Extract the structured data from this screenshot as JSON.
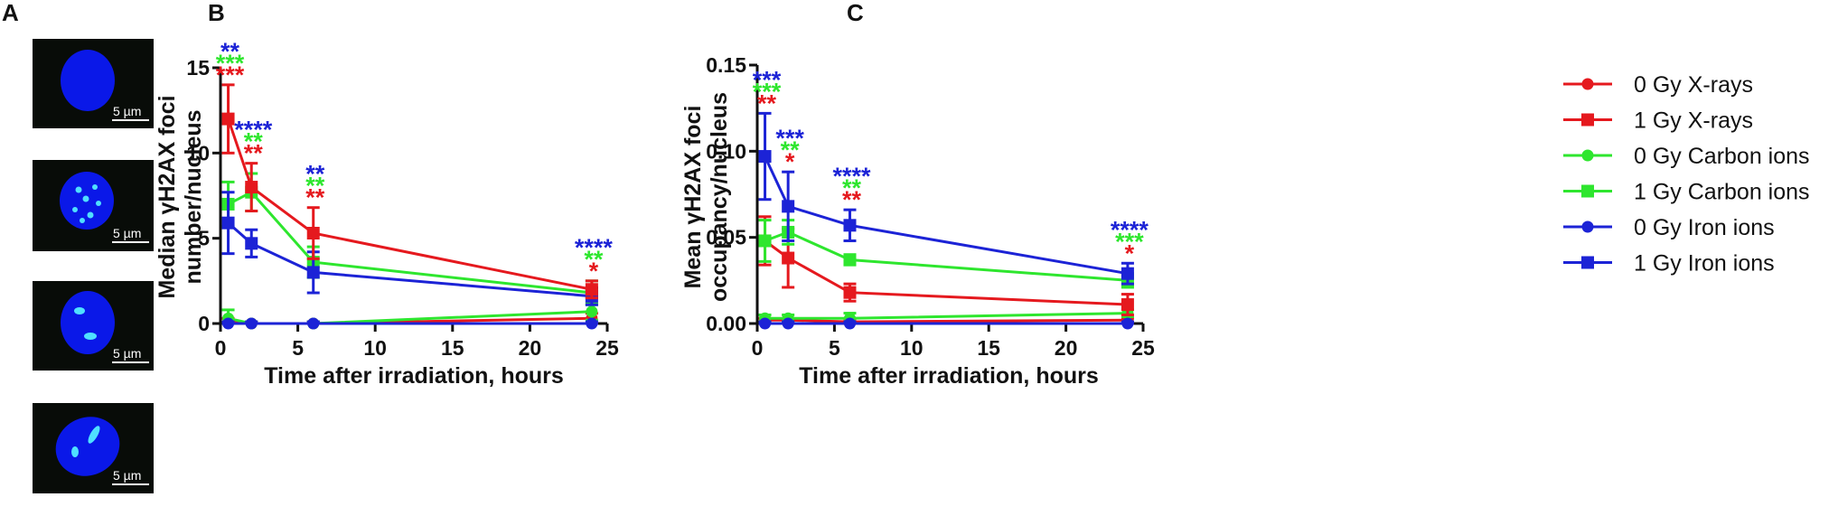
{
  "panel_labels": {
    "a": "A",
    "b": "B",
    "c": "C"
  },
  "micrographs": {
    "scale_bar_label": "5 µm",
    "items": [
      {
        "name": "nucleus-no-foci"
      },
      {
        "name": "nucleus-few-foci"
      },
      {
        "name": "nucleus-small-foci"
      },
      {
        "name": "nucleus-large-foci"
      }
    ]
  },
  "colors": {
    "xray": "#e5191e",
    "carbon": "#2ee62e",
    "iron": "#1c23d6",
    "micrograph_bg": "#080c08",
    "nucleus": "#0a18e8",
    "foci": "#4fe0ff"
  },
  "legend": [
    {
      "label": "0 Gy X-rays",
      "series": "xray",
      "marker": "circle"
    },
    {
      "label": "1 Gy X-rays",
      "series": "xray",
      "marker": "square"
    },
    {
      "label": "0 Gy Carbon ions",
      "series": "carbon",
      "marker": "circle"
    },
    {
      "label": "1 Gy Carbon ions",
      "series": "carbon",
      "marker": "square"
    },
    {
      "label": "0 Gy Iron ions",
      "series": "iron",
      "marker": "circle"
    },
    {
      "label": "1 Gy Iron ions",
      "series": "iron",
      "marker": "square"
    }
  ],
  "chart_data": [
    {
      "id": "B",
      "type": "line",
      "title": "",
      "xlabel": "Time after irradiation, hours",
      "ylabel_line1": "Median γH2AX foci",
      "ylabel_line2": "number/nucleus",
      "xlim": [
        0,
        25
      ],
      "ylim": [
        0,
        15
      ],
      "xticks": [
        0,
        5,
        10,
        15,
        20,
        25
      ],
      "yticks": [
        0,
        5,
        10,
        15
      ],
      "ytick_labels": [
        "0",
        "5",
        "10",
        "15"
      ],
      "x": [
        0.5,
        2,
        6,
        24
      ],
      "series": [
        {
          "name": "0 Gy X-rays",
          "color_key": "xray",
          "marker": "circle",
          "values": [
            0.1,
            0.0,
            0.0,
            0.3
          ],
          "errors": [
            0.2,
            0.1,
            0.1,
            0.3
          ]
        },
        {
          "name": "0 Gy Carbon ions",
          "color_key": "carbon",
          "marker": "circle",
          "values": [
            0.3,
            0.0,
            0.0,
            0.7
          ],
          "errors": [
            0.5,
            0.1,
            0.1,
            0.5
          ]
        },
        {
          "name": "0 Gy Iron ions",
          "color_key": "iron",
          "marker": "circle",
          "values": [
            0.0,
            0.0,
            0.0,
            0.0
          ],
          "errors": [
            0.1,
            0.1,
            0.1,
            0.1
          ]
        },
        {
          "name": "1 Gy Carbon ions",
          "color_key": "carbon",
          "marker": "square",
          "values": [
            7.0,
            7.7,
            3.6,
            1.8
          ],
          "errors": [
            1.3,
            1.1,
            0.9,
            0.7
          ]
        },
        {
          "name": "1 Gy Iron ions",
          "color_key": "iron",
          "marker": "square",
          "values": [
            5.9,
            4.7,
            3.0,
            1.6
          ],
          "errors": [
            1.8,
            0.8,
            1.2,
            0.5
          ]
        },
        {
          "name": "1 Gy X-rays",
          "color_key": "xray",
          "marker": "square",
          "values": [
            12.0,
            8.0,
            5.3,
            2.0
          ],
          "errors": [
            2.0,
            1.4,
            1.5,
            0.5
          ]
        }
      ],
      "significance": [
        {
          "x": 0.5,
          "stars": [
            {
              "text": "**",
              "color_key": "iron"
            },
            {
              "text": "***",
              "color_key": "carbon"
            },
            {
              "text": "***",
              "color_key": "xray"
            }
          ]
        },
        {
          "x": 2,
          "stars": [
            {
              "text": "****",
              "color_key": "iron"
            },
            {
              "text": "**",
              "color_key": "carbon"
            },
            {
              "text": "**",
              "color_key": "xray"
            }
          ]
        },
        {
          "x": 6,
          "stars": [
            {
              "text": "**",
              "color_key": "iron"
            },
            {
              "text": "**",
              "color_key": "carbon"
            },
            {
              "text": "**",
              "color_key": "xray"
            }
          ]
        },
        {
          "x": 24,
          "stars": [
            {
              "text": "****",
              "color_key": "iron"
            },
            {
              "text": "**",
              "color_key": "carbon"
            },
            {
              "text": "*",
              "color_key": "xray"
            }
          ]
        }
      ]
    },
    {
      "id": "C",
      "type": "line",
      "title": "",
      "xlabel": "Time after irradiation, hours",
      "ylabel_line1": "Mean γH2AX foci",
      "ylabel_line2": "occupancy/nucleus",
      "xlim": [
        0,
        25
      ],
      "ylim": [
        0,
        0.15
      ],
      "xticks": [
        0,
        5,
        10,
        15,
        20,
        25
      ],
      "yticks": [
        0,
        0.05,
        0.1,
        0.15
      ],
      "ytick_labels": [
        "0.00",
        "0.05",
        "0.10",
        "0.15"
      ],
      "x": [
        0.5,
        2,
        6,
        24
      ],
      "series": [
        {
          "name": "0 Gy X-rays",
          "color_key": "xray",
          "marker": "circle",
          "values": [
            0.002,
            0.002,
            0.001,
            0.002
          ],
          "errors": [
            0.001,
            0.001,
            0.001,
            0.001
          ]
        },
        {
          "name": "0 Gy Carbon ions",
          "color_key": "carbon",
          "marker": "circle",
          "values": [
            0.003,
            0.003,
            0.003,
            0.006
          ],
          "errors": [
            0.002,
            0.002,
            0.003,
            0.002
          ]
        },
        {
          "name": "0 Gy Iron ions",
          "color_key": "iron",
          "marker": "circle",
          "values": [
            0.0,
            0.0,
            0.0,
            0.0
          ],
          "errors": [
            0.001,
            0.001,
            0.001,
            0.001
          ]
        },
        {
          "name": "1 Gy X-rays",
          "color_key": "xray",
          "marker": "square",
          "values": [
            0.048,
            0.038,
            0.018,
            0.011
          ],
          "errors": [
            0.014,
            0.017,
            0.005,
            0.006
          ]
        },
        {
          "name": "1 Gy Carbon ions",
          "color_key": "carbon",
          "marker": "square",
          "values": [
            0.048,
            0.053,
            0.037,
            0.025
          ],
          "errors": [
            0.012,
            0.007,
            0.003,
            0.004
          ]
        },
        {
          "name": "1 Gy Iron ions",
          "color_key": "iron",
          "marker": "square",
          "values": [
            0.097,
            0.068,
            0.057,
            0.029
          ],
          "errors": [
            0.025,
            0.02,
            0.009,
            0.006
          ]
        }
      ],
      "significance": [
        {
          "x": 0.5,
          "stars": [
            {
              "text": "***",
              "color_key": "iron"
            },
            {
              "text": "***",
              "color_key": "carbon"
            },
            {
              "text": "**",
              "color_key": "xray"
            }
          ]
        },
        {
          "x": 2,
          "stars": [
            {
              "text": "***",
              "color_key": "iron"
            },
            {
              "text": "**",
              "color_key": "carbon"
            },
            {
              "text": "*",
              "color_key": "xray"
            }
          ]
        },
        {
          "x": 6,
          "stars": [
            {
              "text": "****",
              "color_key": "iron"
            },
            {
              "text": "**",
              "color_key": "carbon"
            },
            {
              "text": "**",
              "color_key": "xray"
            }
          ]
        },
        {
          "x": 24,
          "stars": [
            {
              "text": "****",
              "color_key": "iron"
            },
            {
              "text": "***",
              "color_key": "carbon"
            },
            {
              "text": "*",
              "color_key": "xray"
            }
          ]
        }
      ]
    }
  ]
}
